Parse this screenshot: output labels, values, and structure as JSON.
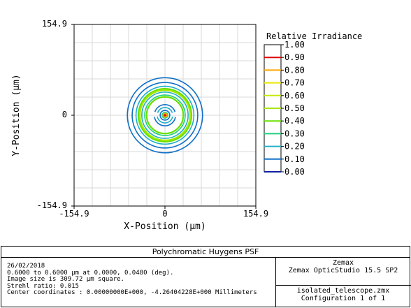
{
  "chart_data": {
    "type": "contour",
    "x": [
      -154.9,
      0,
      154.9
    ],
    "y": [
      -154.9,
      0,
      154.9
    ],
    "xlabel": "X-Position (µm)",
    "ylabel": "Y-Position (µm)",
    "x_tick_labels": [
      "-154.9",
      "0",
      "154.9"
    ],
    "y_tick_labels": [
      "154.9",
      "0",
      "-154.9"
    ],
    "xlim": [
      -154.9,
      154.9
    ],
    "ylim": [
      -154.9,
      154.9
    ],
    "grid": true,
    "legend_title": "Relative Irradiance",
    "levels": [
      {
        "label": "1.00",
        "color": "#ffffff"
      },
      {
        "label": "0.90",
        "color": "#e00000"
      },
      {
        "label": "0.80",
        "color": "#ffa500"
      },
      {
        "label": "0.70",
        "color": "#e8e800"
      },
      {
        "label": "0.60",
        "color": "#c8e800"
      },
      {
        "label": "0.50",
        "color": "#a8e800"
      },
      {
        "label": "0.40",
        "color": "#68e000"
      },
      {
        "label": "0.30",
        "color": "#20d080"
      },
      {
        "label": "0.20",
        "color": "#20b0c8"
      },
      {
        "label": "0.10",
        "color": "#1070c8"
      },
      {
        "label": "0.00",
        "color": "#1020a0"
      }
    ],
    "contours": [
      {
        "level": 0.1,
        "radius": 78,
        "color": "#1070c8"
      },
      {
        "level": 0.1,
        "radius": 68,
        "color": "#1070c8"
      },
      {
        "level": 0.2,
        "radius": 60,
        "color": "#20b0c8"
      },
      {
        "level": 0.2,
        "radius": 48,
        "color": "#20b0c8"
      },
      {
        "level": 0.3,
        "radius": 42,
        "color": "#20d080"
      },
      {
        "level": 0.4,
        "radius": 55,
        "color": "#68e000"
      },
      {
        "level": 0.5,
        "radius": 52,
        "color": "#a8e800"
      },
      {
        "level": 0.4,
        "radius": 38,
        "color": "#68e000"
      },
      {
        "level": 0.1,
        "radius": 22,
        "color": "#1070c8"
      },
      {
        "level": 0.2,
        "radius": 16,
        "color": "#20b0c8"
      },
      {
        "level": 0.1,
        "radius": 10,
        "color": "#1070c8"
      },
      {
        "level": 0.3,
        "radius": 6,
        "color": "#20d080"
      },
      {
        "level": 0.6,
        "radius": 4,
        "color": "#c8e800"
      },
      {
        "level": 0.8,
        "radius": 3,
        "color": "#ffa500"
      },
      {
        "level": 0.9,
        "radius": 1.5,
        "color": "#e00000"
      }
    ]
  },
  "info": {
    "title": "Polychromatic Huygens PSF",
    "left_lines": [
      "26/02/2018",
      "0.6000 to 0.6000 µm at 0.0000, 0.0480 (deg).",
      "Image size is 309.72 µm square.",
      "Strehl ratio: 0.015",
      "Center coordinates  :  0.00000000E+000, -4.26404228E+000 Millimeters"
    ],
    "right_top": [
      "Zemax",
      "Zemax OpticStudio 15.5 SP2"
    ],
    "right_bottom": [
      "isolated_telescope.zmx",
      "Configuration 1 of 1"
    ]
  }
}
